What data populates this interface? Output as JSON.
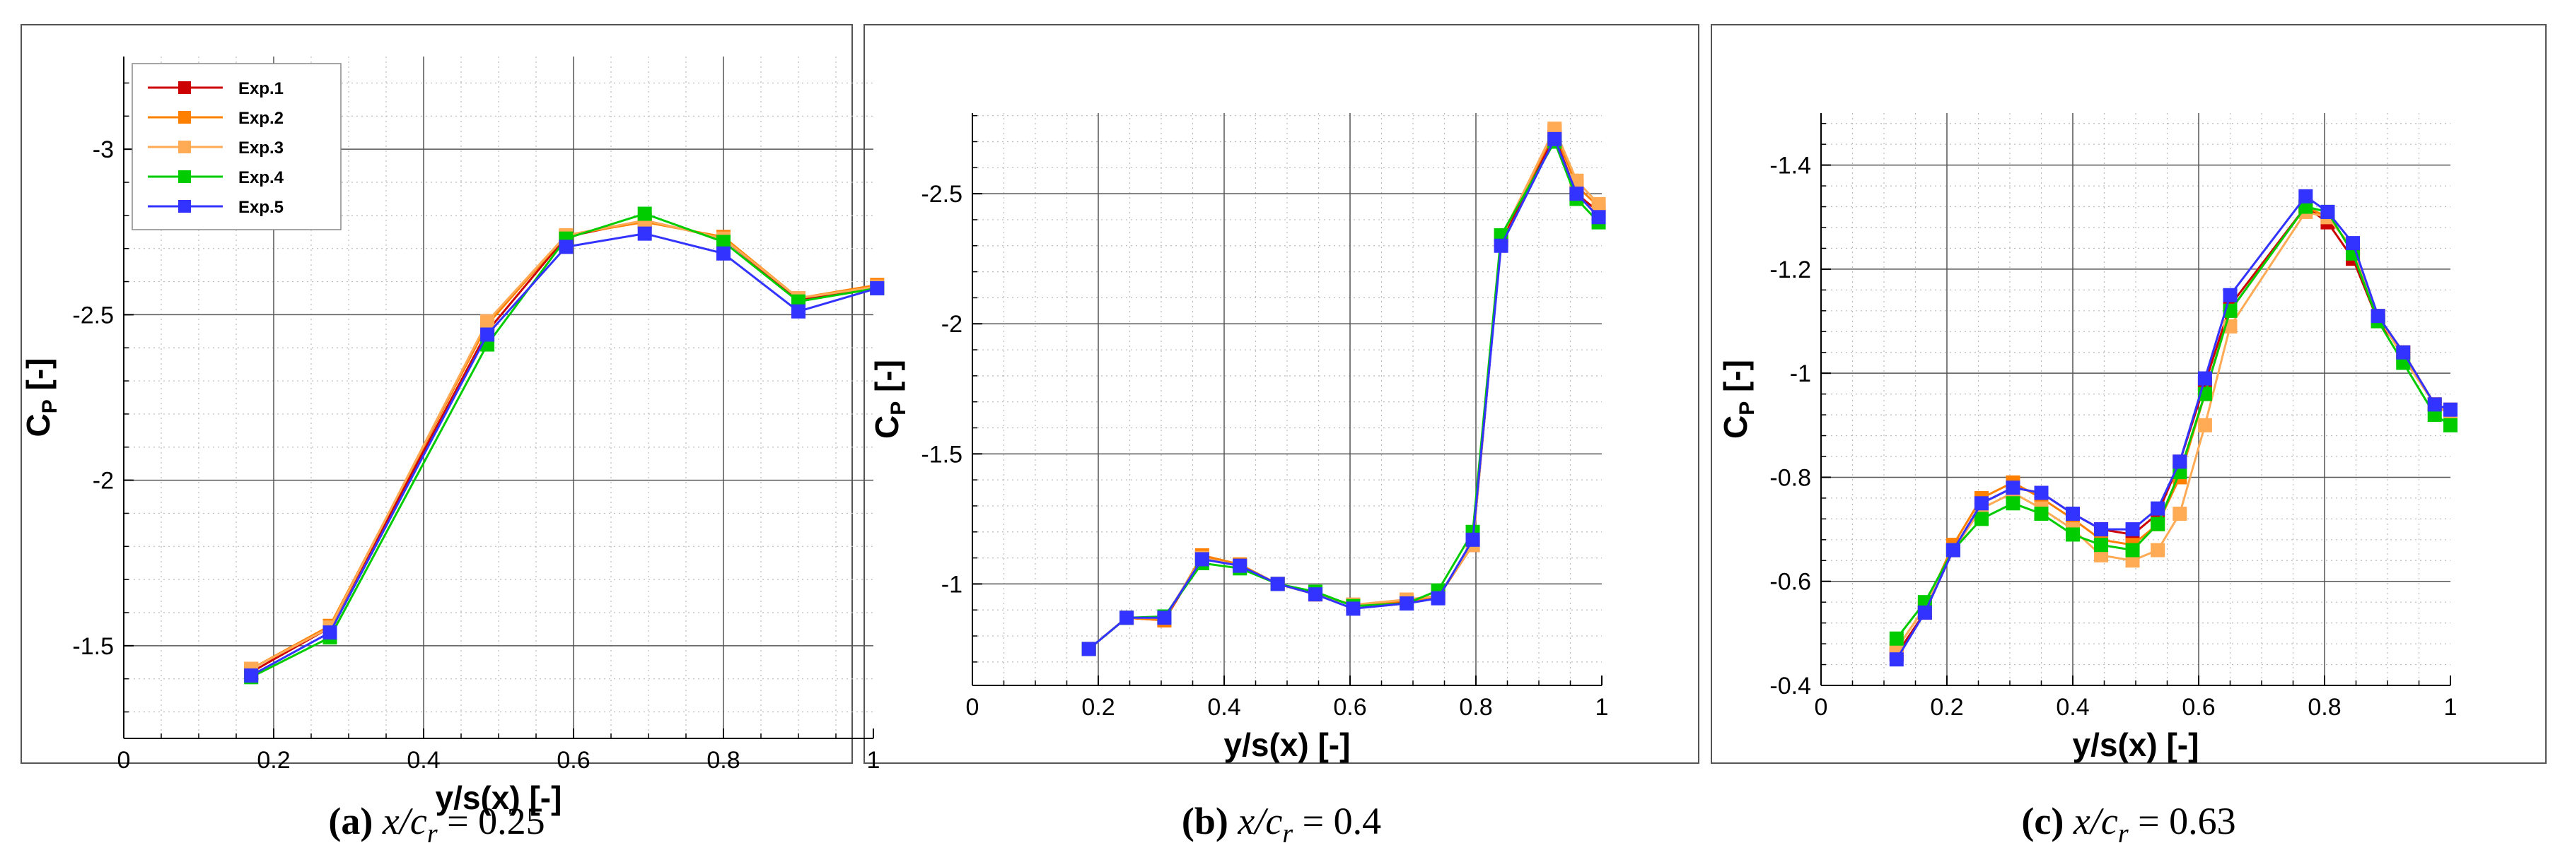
{
  "figure": {
    "captions": [
      {
        "letter": "(a)",
        "lhs_var": "x",
        "lhs_den": "c",
        "lhs_sub": "r",
        "rhs": "= 0.25"
      },
      {
        "letter": "(b)",
        "lhs_var": "x",
        "lhs_den": "c",
        "lhs_sub": "r",
        "rhs": "= 0.4"
      },
      {
        "letter": "(c)",
        "lhs_var": "x",
        "lhs_den": "c",
        "lhs_sub": "r",
        "rhs": "= 0.63"
      }
    ]
  },
  "series_colors": {
    "Exp.1": "#cc0000",
    "Exp.2": "#ff8000",
    "Exp.3": "#ffaa55",
    "Exp.4": "#00cc00",
    "Exp.5": "#3333ff"
  },
  "chart_data": [
    {
      "type": "line",
      "xlabel": "y/s(x) [-]",
      "ylabel_main": "C",
      "ylabel_sub": "P",
      "ylabel_unit": "[-]",
      "xlim": [
        0,
        1
      ],
      "ylim": [
        -1.22,
        -3.28
      ],
      "y_inverted": true,
      "grid": true,
      "xticks": [
        0,
        0.2,
        0.4,
        0.6,
        0.8,
        1
      ],
      "xtick_labels": [
        "0",
        "0.2",
        "0.4",
        "0.6",
        "0.8",
        "1"
      ],
      "yticks": [
        -1.5,
        -2,
        -2.5,
        -3
      ],
      "ytick_labels": [
        "-1.5",
        "-2",
        "-2.5",
        "-3"
      ],
      "legend_position": "top-left",
      "legend": [
        "Exp.1",
        "Exp.2",
        "Exp.3",
        "Exp.4",
        "Exp.5"
      ],
      "x": [
        0.17,
        0.275,
        0.485,
        0.59,
        0.695,
        0.8,
        0.9,
        1.005
      ],
      "series": [
        {
          "name": "Exp.1",
          "values": [
            -1.42,
            -1.555,
            -2.45,
            -2.735,
            -2.785,
            -2.73,
            -2.545,
            -2.58
          ]
        },
        {
          "name": "Exp.2",
          "values": [
            -1.43,
            -1.56,
            -2.47,
            -2.74,
            -2.78,
            -2.735,
            -2.55,
            -2.59
          ]
        },
        {
          "name": "Exp.3",
          "values": [
            -1.43,
            -1.555,
            -2.48,
            -2.74,
            -2.785,
            -2.73,
            -2.55,
            -2.585
          ]
        },
        {
          "name": "Exp.4",
          "values": [
            -1.405,
            -1.525,
            -2.41,
            -2.73,
            -2.805,
            -2.72,
            -2.54,
            -2.58
          ]
        },
        {
          "name": "Exp.5",
          "values": [
            -1.41,
            -1.54,
            -2.44,
            -2.705,
            -2.745,
            -2.685,
            -2.51,
            -2.58
          ]
        }
      ]
    },
    {
      "type": "line",
      "xlabel": "y/s(x) [-]",
      "ylabel_main": "C",
      "ylabel_sub": "P",
      "ylabel_unit": "[-]",
      "xlim": [
        0,
        1
      ],
      "ylim": [
        -0.61,
        -2.81
      ],
      "y_inverted": true,
      "grid": true,
      "xticks": [
        0,
        0.2,
        0.4,
        0.6,
        0.8,
        1
      ],
      "xtick_labels": [
        "0",
        "0.2",
        "0.4",
        "0.6",
        "0.8",
        "1"
      ],
      "yticks": [
        -1,
        -1.5,
        -2,
        -2.5
      ],
      "ytick_labels": [
        "-1",
        "-1.5",
        "-2",
        "-2.5"
      ],
      "x": [
        0.185,
        0.245,
        0.305,
        0.365,
        0.425,
        0.485,
        0.545,
        0.605,
        0.69,
        0.74,
        0.795,
        0.84,
        0.925,
        0.96,
        0.995
      ],
      "series": [
        {
          "name": "Exp.1",
          "values": [
            -0.75,
            -0.87,
            -0.86,
            -1.1,
            -1.07,
            -1.0,
            -0.96,
            -0.92,
            -0.93,
            -0.95,
            -1.15,
            -2.32,
            -2.72,
            -2.5,
            -2.43
          ]
        },
        {
          "name": "Exp.2",
          "values": [
            -0.75,
            -0.87,
            -0.86,
            -1.11,
            -1.075,
            -1.0,
            -0.96,
            -0.92,
            -0.935,
            -0.95,
            -1.15,
            -2.33,
            -2.74,
            -2.53,
            -2.45
          ]
        },
        {
          "name": "Exp.3",
          "values": [
            -0.75,
            -0.87,
            -0.87,
            -1.1,
            -1.07,
            -1.0,
            -0.96,
            -0.92,
            -0.94,
            -0.955,
            -1.15,
            -2.33,
            -2.75,
            -2.55,
            -2.46
          ]
        },
        {
          "name": "Exp.4",
          "values": [
            -0.75,
            -0.87,
            -0.875,
            -1.08,
            -1.06,
            -1.0,
            -0.97,
            -0.915,
            -0.925,
            -0.975,
            -1.2,
            -2.34,
            -2.7,
            -2.48,
            -2.39
          ]
        },
        {
          "name": "Exp.5",
          "values": [
            -0.75,
            -0.87,
            -0.87,
            -1.095,
            -1.07,
            -1.0,
            -0.96,
            -0.905,
            -0.925,
            -0.945,
            -1.17,
            -2.3,
            -2.71,
            -2.5,
            -2.41
          ]
        }
      ]
    },
    {
      "type": "line",
      "xlabel": "y/s(x) [-]",
      "ylabel_main": "C",
      "ylabel_sub": "P",
      "ylabel_unit": "[-]",
      "xlim": [
        0,
        1
      ],
      "ylim": [
        -0.4,
        -1.5
      ],
      "y_inverted": true,
      "grid": true,
      "xticks": [
        0,
        0.2,
        0.4,
        0.6,
        0.8,
        1
      ],
      "xtick_labels": [
        "0",
        "0.2",
        "0.4",
        "0.6",
        "0.8",
        "1"
      ],
      "yticks": [
        -0.4,
        -0.6,
        -0.8,
        -1,
        -1.2,
        -1.4
      ],
      "ytick_labels": [
        "-0.4",
        "-0.6",
        "-0.8",
        "-1",
        "-1.2",
        "-1.4"
      ],
      "x": [
        0.12,
        0.165,
        0.21,
        0.255,
        0.305,
        0.35,
        0.4,
        0.445,
        0.495,
        0.535,
        0.57,
        0.61,
        0.65,
        0.77,
        0.805,
        0.845,
        0.885,
        0.925,
        0.975,
        1.0
      ],
      "series": [
        {
          "name": "Exp.1",
          "values": [
            -0.46,
            -0.54,
            -0.66,
            -0.75,
            -0.78,
            -0.77,
            -0.73,
            -0.7,
            -0.69,
            -0.73,
            -0.83,
            -0.98,
            -1.13,
            -1.32,
            -1.29,
            -1.22,
            -1.1,
            -1.04,
            -0.94,
            -0.92
          ]
        },
        {
          "name": "Exp.2",
          "values": [
            -0.47,
            -0.55,
            -0.67,
            -0.76,
            -0.79,
            -0.76,
            -0.72,
            -0.68,
            -0.67,
            -0.71,
            -0.8,
            -0.96,
            -1.12,
            -1.32,
            -1.3,
            -1.24,
            -1.11,
            -1.04,
            -0.94,
            -0.93
          ]
        },
        {
          "name": "Exp.3",
          "values": [
            -0.47,
            -0.55,
            -0.66,
            -0.74,
            -0.77,
            -0.74,
            -0.7,
            -0.65,
            -0.64,
            -0.66,
            -0.73,
            -0.9,
            -1.09,
            -1.31,
            -1.3,
            -1.24,
            -1.11,
            -1.03,
            -0.94,
            -0.92
          ]
        },
        {
          "name": "Exp.4",
          "values": [
            -0.49,
            -0.56,
            -0.66,
            -0.72,
            -0.75,
            -0.73,
            -0.69,
            -0.67,
            -0.66,
            -0.71,
            -0.81,
            -0.96,
            -1.12,
            -1.32,
            -1.31,
            -1.23,
            -1.1,
            -1.02,
            -0.92,
            -0.9
          ]
        },
        {
          "name": "Exp.5",
          "values": [
            -0.45,
            -0.54,
            -0.66,
            -0.75,
            -0.78,
            -0.77,
            -0.73,
            -0.7,
            -0.7,
            -0.74,
            -0.83,
            -0.99,
            -1.15,
            -1.34,
            -1.31,
            -1.25,
            -1.11,
            -1.04,
            -0.94,
            -0.93
          ]
        }
      ]
    }
  ]
}
